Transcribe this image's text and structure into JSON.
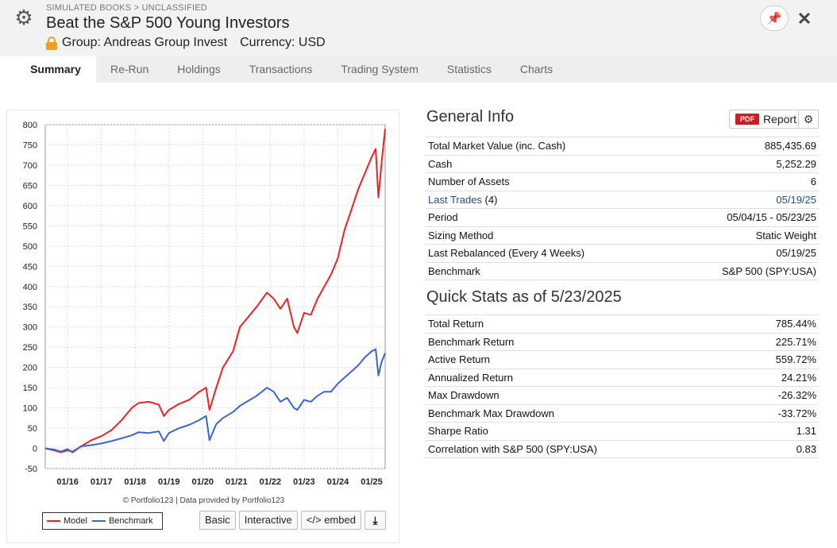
{
  "header": {
    "breadcrumb": "SIMULATED BOOKS > UNCLASSIFIED",
    "title": "Beat the S&P 500 Young Investors",
    "group": "Group: Andreas Group Invest",
    "currency": "Currency: USD"
  },
  "tabs": [
    {
      "label": "Summary"
    },
    {
      "label": "Re-Run"
    },
    {
      "label": "Holdings"
    },
    {
      "label": "Transactions"
    },
    {
      "label": "Trading System"
    },
    {
      "label": "Statistics"
    },
    {
      "label": "Charts"
    }
  ],
  "chart": {
    "credit": "© Portfolio123 | Data provided by Portfolio123",
    "legend": [
      {
        "name": "Model",
        "color": "#ee2222"
      },
      {
        "name": "Benchmark",
        "color": "#3a66cc"
      }
    ],
    "buttons": {
      "basic": "Basic",
      "interactive": "Interactive",
      "embed": "</> embed",
      "download": "⤓"
    }
  },
  "chart_data": {
    "type": "line",
    "ylim": [
      -50,
      800
    ],
    "yticks": [
      "800",
      "750",
      "700",
      "650",
      "600",
      "550",
      "500",
      "450",
      "400",
      "350",
      "300",
      "250",
      "200",
      "150",
      "100",
      "50",
      "0",
      "-50"
    ],
    "ytick_values": [
      800,
      750,
      700,
      650,
      600,
      550,
      500,
      450,
      400,
      350,
      300,
      250,
      200,
      150,
      100,
      50,
      0,
      -50
    ],
    "xticks": [
      "01/16",
      "01/17",
      "01/18",
      "01/19",
      "01/20",
      "01/21",
      "01/22",
      "01/23",
      "01/24",
      "01/25"
    ],
    "xtick_values": [
      2016.0,
      2017.0,
      2018.0,
      2019.0,
      2020.0,
      2021.0,
      2022.0,
      2023.0,
      2024.0,
      2025.0
    ],
    "xlim": [
      2015.34,
      2025.4
    ],
    "grid": true,
    "series": [
      {
        "name": "Model",
        "color": "#ee2222",
        "x": [
          2015.34,
          2015.6,
          2015.8,
          2016.0,
          2016.15,
          2016.4,
          2016.7,
          2017.0,
          2017.3,
          2017.6,
          2017.9,
          2018.1,
          2018.4,
          2018.7,
          2018.85,
          2019.0,
          2019.3,
          2019.6,
          2019.9,
          2020.1,
          2020.2,
          2020.4,
          2020.6,
          2020.9,
          2021.1,
          2021.3,
          2021.6,
          2021.9,
          2022.1,
          2022.3,
          2022.5,
          2022.7,
          2022.8,
          2023.0,
          2023.2,
          2023.4,
          2023.6,
          2023.8,
          2024.0,
          2024.2,
          2024.4,
          2024.6,
          2024.8,
          2025.0,
          2025.12,
          2025.2,
          2025.3,
          2025.4
        ],
        "y": [
          0,
          -5,
          -10,
          -5,
          -8,
          5,
          20,
          30,
          45,
          70,
          100,
          112,
          115,
          108,
          80,
          95,
          110,
          120,
          140,
          150,
          95,
          150,
          200,
          240,
          300,
          320,
          350,
          385,
          370,
          345,
          370,
          300,
          285,
          335,
          330,
          370,
          400,
          430,
          470,
          540,
          590,
          640,
          680,
          720,
          740,
          620,
          710,
          790
        ]
      },
      {
        "name": "Benchmark",
        "color": "#3a66cc",
        "x": [
          2015.34,
          2015.6,
          2015.8,
          2016.0,
          2016.15,
          2016.4,
          2016.7,
          2017.0,
          2017.3,
          2017.6,
          2017.9,
          2018.1,
          2018.4,
          2018.7,
          2018.85,
          2019.0,
          2019.3,
          2019.6,
          2019.9,
          2020.1,
          2020.2,
          2020.4,
          2020.6,
          2020.9,
          2021.1,
          2021.3,
          2021.6,
          2021.9,
          2022.1,
          2022.3,
          2022.5,
          2022.7,
          2022.8,
          2023.0,
          2023.2,
          2023.4,
          2023.6,
          2023.8,
          2024.0,
          2024.2,
          2024.4,
          2024.6,
          2024.8,
          2025.0,
          2025.12,
          2025.2,
          2025.3,
          2025.4
        ],
        "y": [
          0,
          -3,
          -8,
          -2,
          -10,
          5,
          8,
          12,
          18,
          25,
          32,
          40,
          38,
          42,
          18,
          38,
          50,
          58,
          70,
          80,
          20,
          60,
          75,
          90,
          105,
          115,
          130,
          150,
          140,
          115,
          125,
          100,
          95,
          120,
          115,
          130,
          140,
          140,
          160,
          175,
          190,
          205,
          225,
          240,
          245,
          180,
          215,
          235
        ]
      }
    ]
  },
  "general_info": {
    "title": "General Info",
    "report_label": "Report",
    "pdf_label": "PDF",
    "rows": [
      {
        "label": "Total Market Value (inc. Cash)",
        "value": "885,435.69"
      },
      {
        "label": "Cash",
        "value": "5,252.29"
      },
      {
        "label": "Number of Assets",
        "value": "6"
      },
      {
        "label": "Last Trades",
        "label_suffix": " (4)",
        "value": "05/19/25"
      },
      {
        "label": "Period",
        "value": "05/04/15 - 05/23/25"
      },
      {
        "label": "Sizing Method",
        "value": "Static Weight"
      },
      {
        "label": "Last Rebalanced (Every 4 Weeks)",
        "value": "05/19/25"
      },
      {
        "label": "Benchmark",
        "value": "S&P 500 (SPY:USA)"
      }
    ]
  },
  "quick_stats": {
    "title": "Quick Stats as of 5/23/2025",
    "rows": [
      {
        "label": "Total Return",
        "value": "785.44%"
      },
      {
        "label": "Benchmark Return",
        "value": "225.71%"
      },
      {
        "label": "Active Return",
        "value": "559.72%"
      },
      {
        "label": "Annualized Return",
        "value": "24.21%"
      },
      {
        "label": "Max Drawdown",
        "value": "-26.32%"
      },
      {
        "label": "Benchmark Max Drawdown",
        "value": "-33.72%"
      },
      {
        "label": "Sharpe Ratio",
        "value": "1.31"
      },
      {
        "label": "Correlation with S&P 500 (SPY:USA)",
        "value": "0.83"
      }
    ]
  }
}
